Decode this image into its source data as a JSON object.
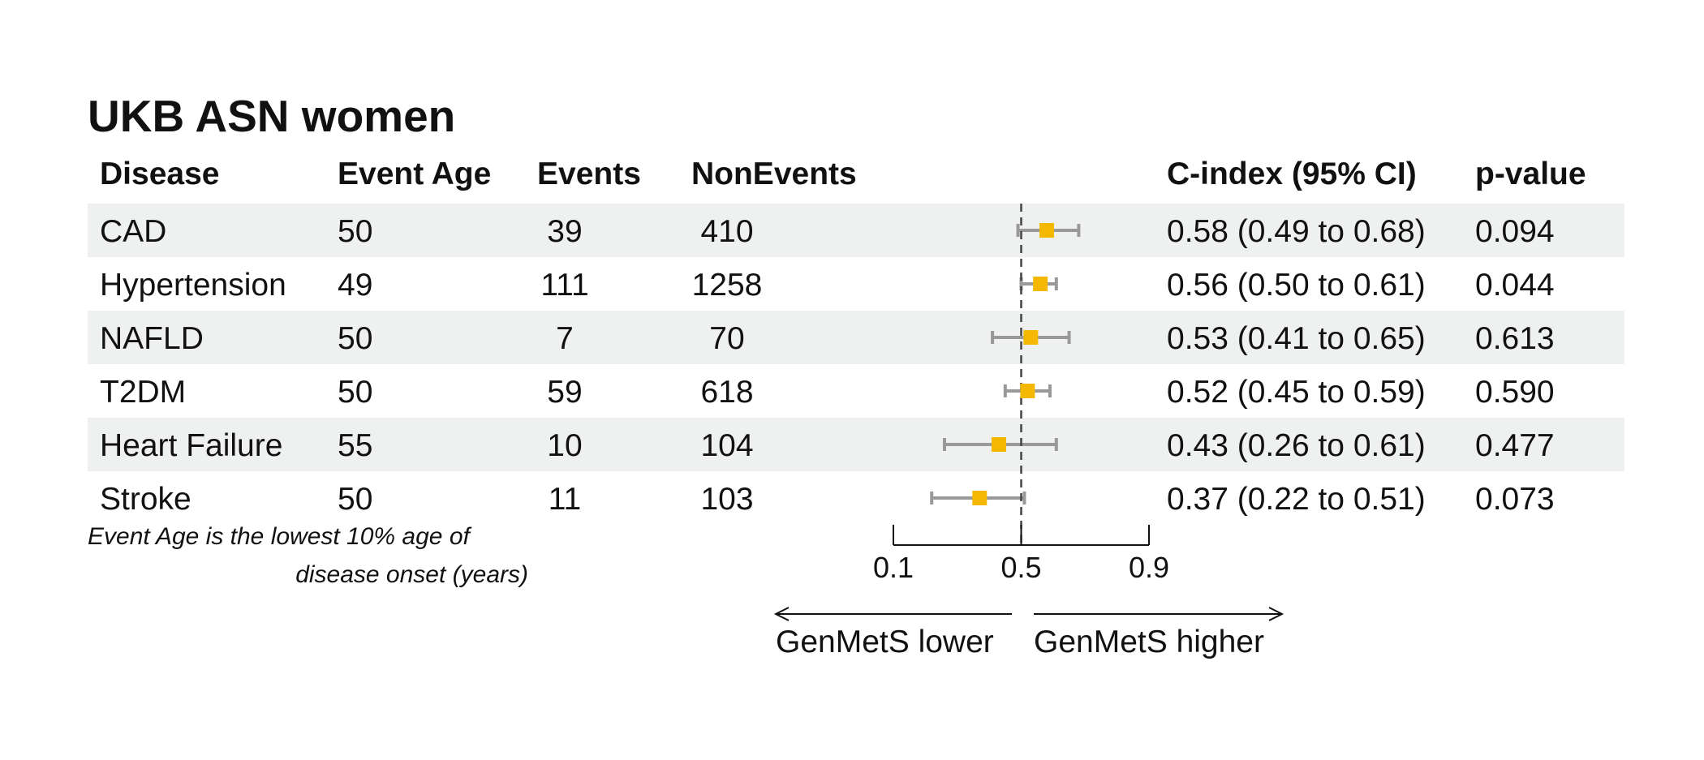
{
  "chart_data": {
    "type": "forest",
    "title": "UKB ASN women",
    "columns": {
      "disease": "Disease",
      "event_age": "Event Age",
      "events": "Events",
      "nonevents": "NonEvents",
      "cindex": "C-index (95% CI)",
      "pvalue": "p-value"
    },
    "rows": [
      {
        "disease": "CAD",
        "event_age": "50",
        "events": "39",
        "nonevents": "410",
        "estimate": 0.58,
        "lower": 0.49,
        "upper": 0.68,
        "cindex_text": "0.58 (0.49 to 0.68)",
        "pvalue": "0.094"
      },
      {
        "disease": "Hypertension",
        "event_age": "49",
        "events": "111",
        "nonevents": "1258",
        "estimate": 0.56,
        "lower": 0.5,
        "upper": 0.61,
        "cindex_text": "0.56 (0.50 to 0.61)",
        "pvalue": "0.044"
      },
      {
        "disease": "NAFLD",
        "event_age": "50",
        "events": "7",
        "nonevents": "70",
        "estimate": 0.53,
        "lower": 0.41,
        "upper": 0.65,
        "cindex_text": "0.53 (0.41 to 0.65)",
        "pvalue": "0.613"
      },
      {
        "disease": "T2DM",
        "event_age": "50",
        "events": "59",
        "nonevents": "618",
        "estimate": 0.52,
        "lower": 0.45,
        "upper": 0.59,
        "cindex_text": "0.52 (0.45 to 0.59)",
        "pvalue": "0.590"
      },
      {
        "disease": "Heart Failure",
        "event_age": "55",
        "events": "10",
        "nonevents": "104",
        "estimate": 0.43,
        "lower": 0.26,
        "upper": 0.61,
        "cindex_text": "0.43 (0.26 to 0.61)",
        "pvalue": "0.477"
      },
      {
        "disease": "Stroke",
        "event_age": "50",
        "events": "11",
        "nonevents": "103",
        "estimate": 0.37,
        "lower": 0.22,
        "upper": 0.51,
        "cindex_text": "0.37 (0.22 to 0.51)",
        "pvalue": "0.073"
      }
    ],
    "x_axis": {
      "ticks": [
        0.1,
        0.5,
        0.9
      ],
      "tick_labels": [
        "0.1",
        "0.5",
        "0.9"
      ],
      "reference": 0.5,
      "xlim": [
        0.1,
        0.9
      ]
    },
    "arrow_labels": {
      "left": "GenMetS lower",
      "right": "GenMetS higher"
    },
    "footnote": [
      "Event Age is the lowest 10% age of",
      "disease onset (years)"
    ],
    "colors": {
      "point": "#f5b800",
      "whisker": "#999999",
      "stripe": "#eff1f0",
      "reference_line": "#444444",
      "text": "#111111"
    }
  }
}
